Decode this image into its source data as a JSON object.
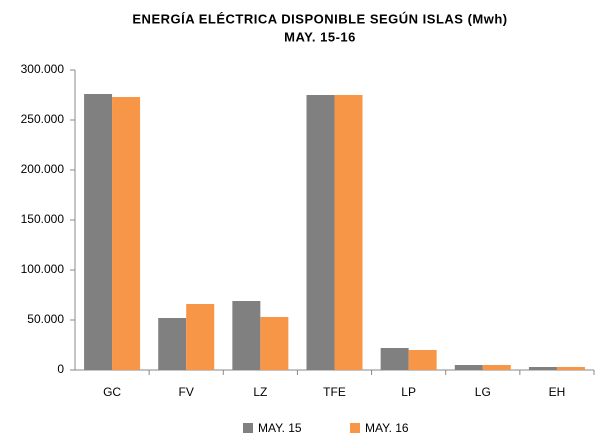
{
  "chart_data": {
    "type": "bar",
    "title": "ENERGÍA ELÉCTRICA DISPONIBLE SEGÚN ISLAS (Mwh)",
    "subtitle": "MAY. 15-16",
    "categories": [
      "GC",
      "FV",
      "LZ",
      "TFE",
      "LP",
      "LG",
      "EH"
    ],
    "series": [
      {
        "name": "MAY. 15",
        "color": "#808080",
        "values": [
          276000,
          52000,
          69000,
          275000,
          22000,
          5000,
          3000
        ]
      },
      {
        "name": "MAY. 16",
        "color": "#f79646",
        "values": [
          273000,
          66000,
          53000,
          275000,
          20000,
          5000,
          3000
        ]
      }
    ],
    "ylim": [
      0,
      300000
    ],
    "yticks": [
      0,
      {
        "value": 50000,
        "label": "50.000"
      },
      {
        "value": 100000,
        "label": "100.000"
      },
      {
        "value": 150000,
        "label": "150.000"
      },
      {
        "value": 200000,
        "label": "200.000"
      },
      {
        "value": 250000,
        "label": "250.000"
      },
      {
        "value": 300000,
        "label": "300.000"
      }
    ],
    "grid": false,
    "legend": "bottom"
  }
}
